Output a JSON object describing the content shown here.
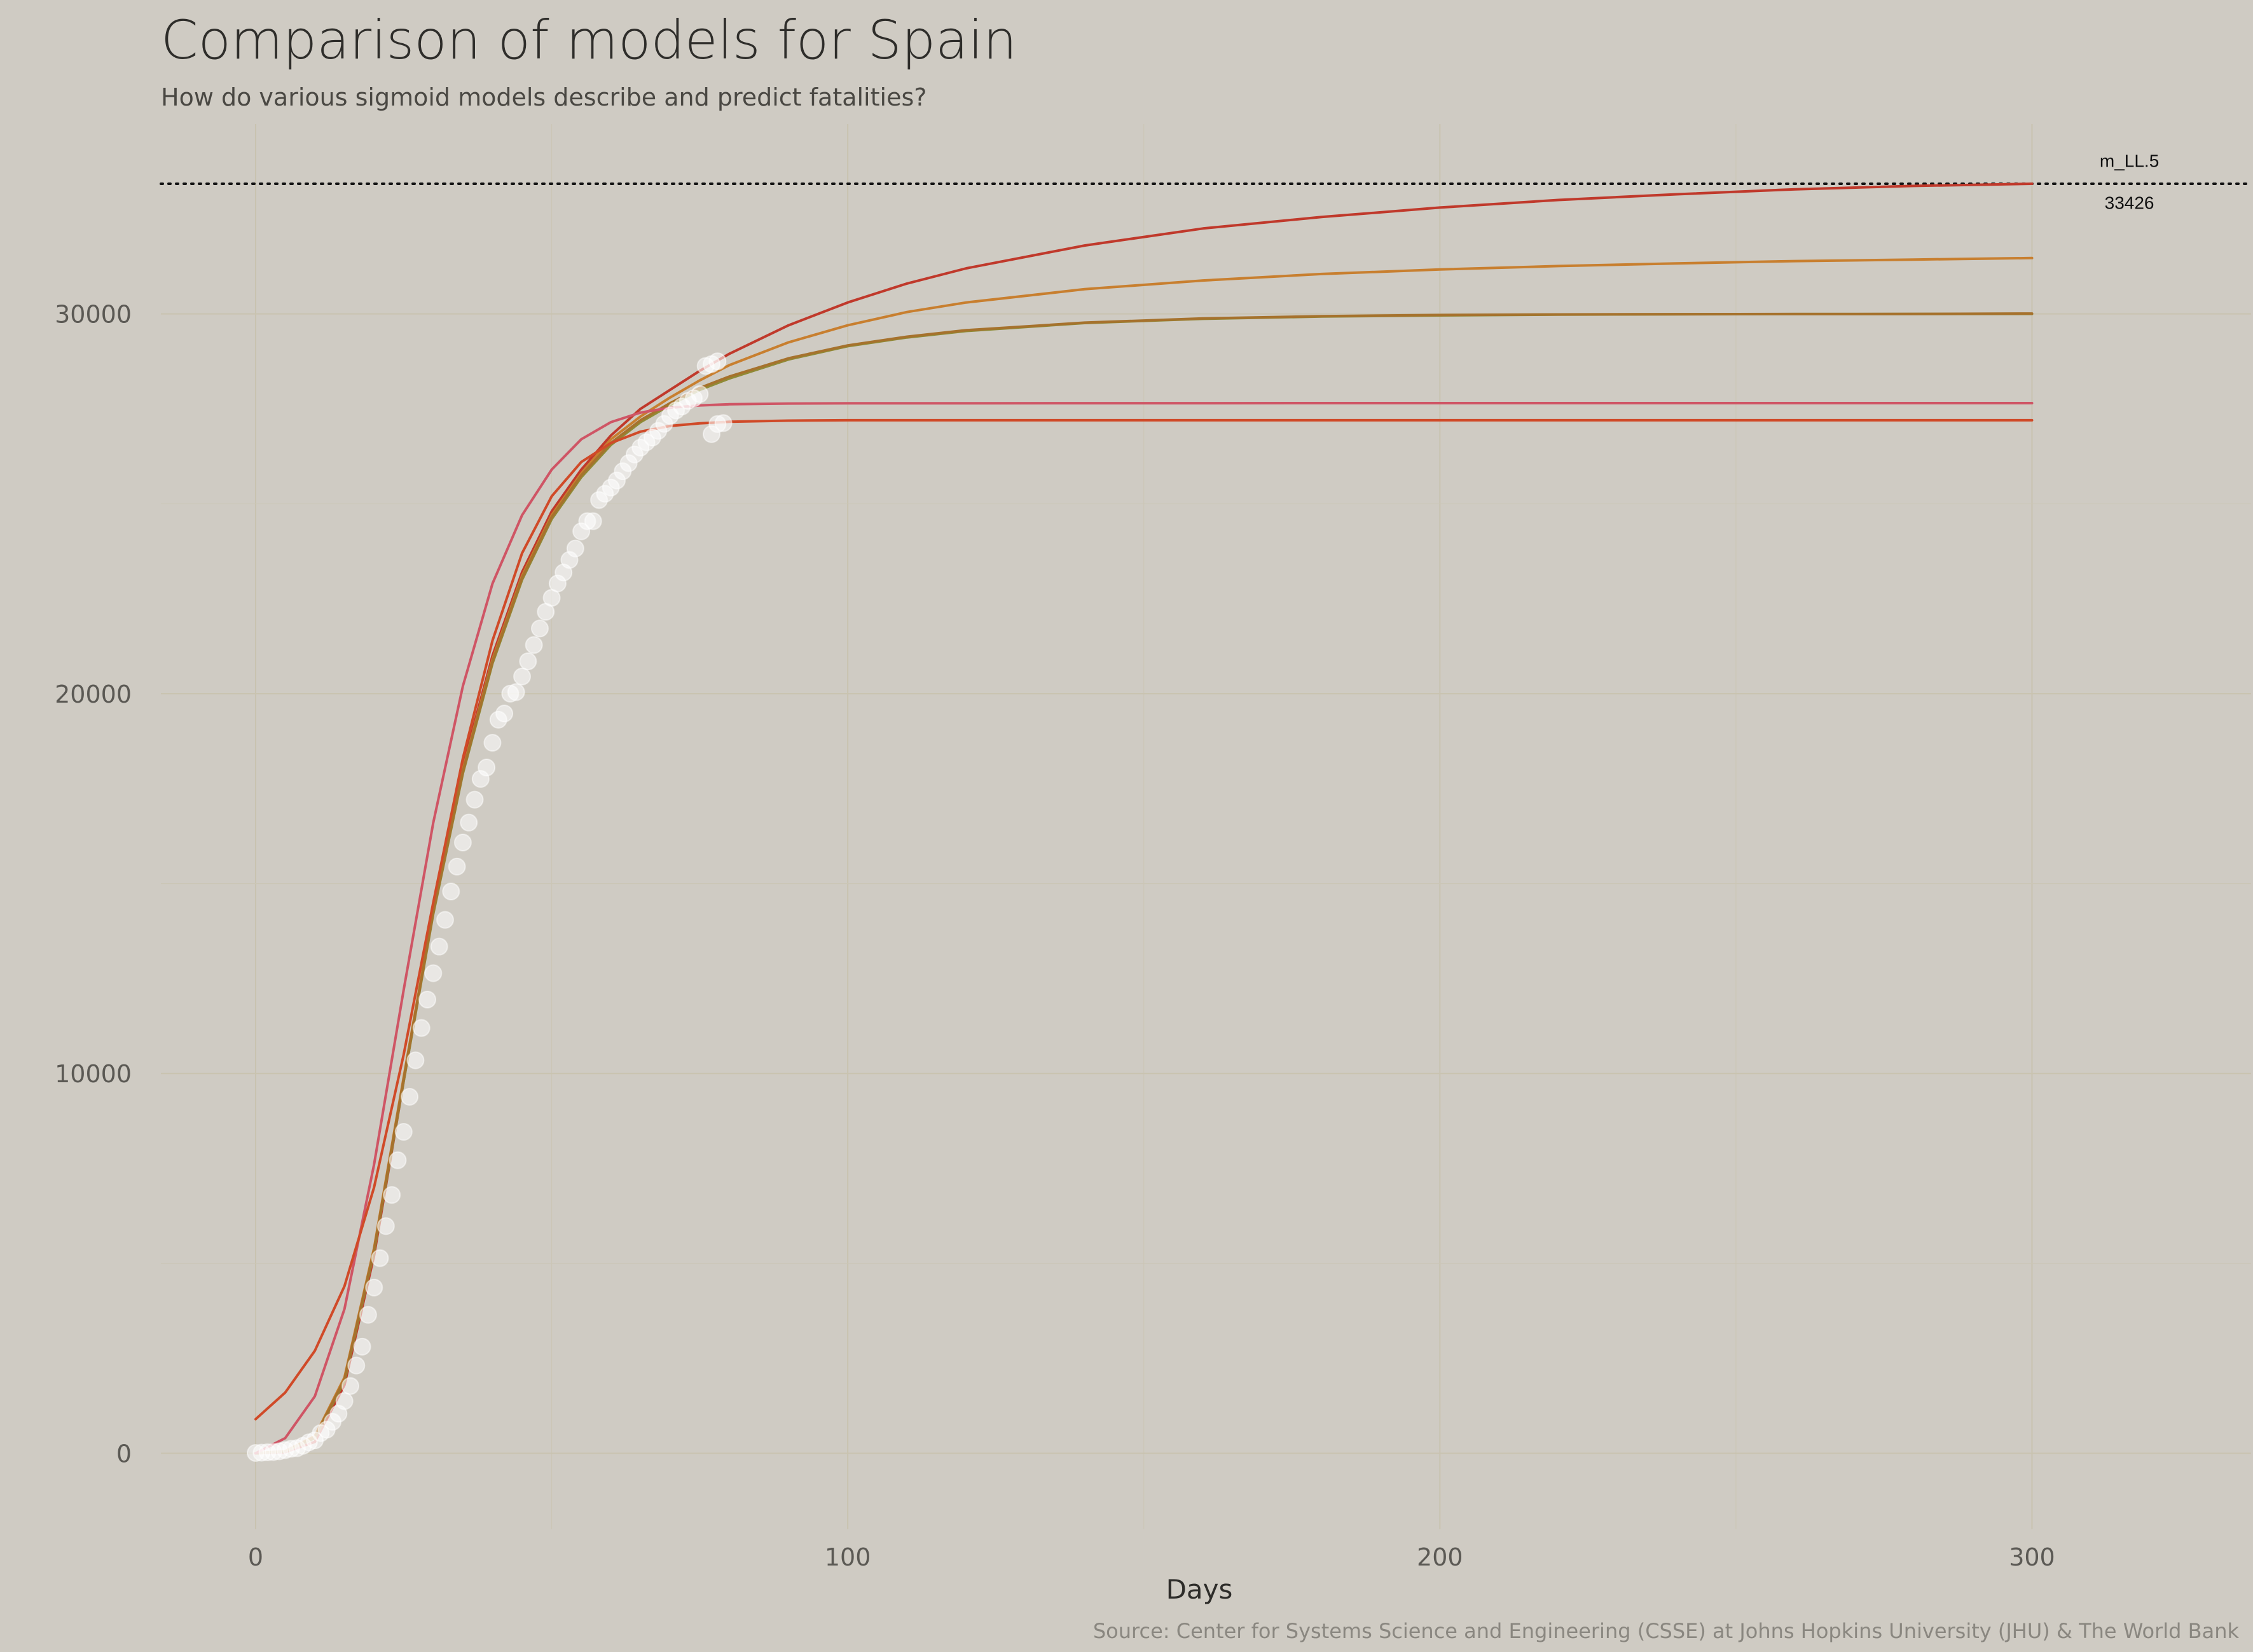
{
  "chart_data": {
    "type": "line",
    "title": "Comparison of models for Spain",
    "subtitle": "How do various sigmoid models describe and predict fatalities?",
    "xlabel": "Days",
    "ylabel": "",
    "caption": "Source: Center for Systems Science and Engineering (CSSE) at Johns Hopkins University (JHU) & The World Bank",
    "xlim": [
      -16,
      337
    ],
    "ylim": [
      -2000,
      35000
    ],
    "x_ticks": [
      0,
      100,
      200,
      300
    ],
    "x_tick_labels": [
      "0",
      "100",
      "200",
      "300"
    ],
    "y_ticks": [
      0,
      10000,
      20000,
      30000
    ],
    "y_tick_labels": [
      "0",
      "10000",
      "20000",
      "30000"
    ],
    "grid": true,
    "legend": "none",
    "reference_line": {
      "y": 33426,
      "style": "dotted",
      "color": "#111111"
    },
    "annotations": [
      {
        "text": "m_LL.5",
        "x": 310,
        "y": 34000
      },
      {
        "text": "33426",
        "x": 310,
        "y": 32900
      }
    ],
    "series": [
      {
        "kind": "line",
        "color": "#c0392b",
        "x": [
          0,
          5,
          10,
          15,
          20,
          25,
          30,
          35,
          40,
          45,
          50,
          55,
          60,
          65,
          70,
          75,
          80,
          90,
          100,
          110,
          120,
          140,
          160,
          180,
          200,
          220,
          240,
          260,
          280,
          300
        ],
        "y": [
          0,
          30,
          300,
          1800,
          5200,
          9800,
          14300,
          18100,
          21000,
          23200,
          24800,
          25900,
          26800,
          27500,
          28000,
          28500,
          28950,
          29700,
          30300,
          30800,
          31200,
          31800,
          32250,
          32550,
          32800,
          33000,
          33150,
          33280,
          33370,
          33426
        ]
      },
      {
        "kind": "line",
        "color": "#c87f2f",
        "x": [
          0,
          5,
          10,
          15,
          20,
          25,
          30,
          35,
          40,
          45,
          50,
          55,
          60,
          65,
          70,
          75,
          80,
          90,
          100,
          110,
          120,
          140,
          160,
          180,
          200,
          220,
          240,
          260,
          280,
          300
        ],
        "y": [
          0,
          60,
          450,
          2000,
          5400,
          9900,
          14300,
          18000,
          20900,
          23100,
          24700,
          25800,
          26700,
          27300,
          27800,
          28250,
          28650,
          29250,
          29700,
          30050,
          30300,
          30650,
          30880,
          31050,
          31170,
          31260,
          31330,
          31390,
          31430,
          31470
        ]
      },
      {
        "kind": "line",
        "color": "#8f8a36",
        "x": [
          0,
          5,
          10,
          15,
          20,
          25,
          30,
          35,
          40,
          45,
          50,
          55,
          60,
          65,
          70,
          75,
          80,
          90,
          100,
          110,
          120,
          140,
          160,
          180,
          200,
          220,
          240,
          260,
          280,
          300
        ],
        "y": [
          0,
          50,
          400,
          1900,
          5300,
          9800,
          14200,
          17900,
          20800,
          23000,
          24600,
          25700,
          26550,
          27150,
          27600,
          28000,
          28300,
          28800,
          29150,
          29380,
          29550,
          29760,
          29870,
          29930,
          29960,
          29980,
          29990,
          29995,
          29998,
          30000
        ]
      },
      {
        "kind": "line",
        "color": "#a6722d",
        "x": [
          0,
          5,
          10,
          15,
          20,
          25,
          30,
          35,
          40,
          45,
          50,
          55,
          60,
          65,
          70,
          75,
          80,
          90,
          100,
          110,
          120,
          140,
          160,
          180,
          200,
          220,
          240,
          260,
          280,
          300
        ],
        "y": [
          0,
          55,
          420,
          1950,
          5350,
          9850,
          14250,
          17950,
          20850,
          23050,
          24650,
          25750,
          26600,
          27200,
          27650,
          28050,
          28350,
          28830,
          29170,
          29400,
          29570,
          29770,
          29880,
          29940,
          29970,
          29985,
          29992,
          29996,
          29998,
          30010
        ]
      },
      {
        "kind": "line",
        "color": "#cf5565",
        "x": [
          0,
          5,
          10,
          15,
          20,
          25,
          30,
          35,
          40,
          45,
          50,
          55,
          60,
          65,
          70,
          75,
          80,
          90,
          100,
          150,
          200,
          250,
          300
        ],
        "y": [
          0,
          400,
          1500,
          3800,
          7600,
          12200,
          16600,
          20200,
          22900,
          24700,
          25900,
          26700,
          27150,
          27400,
          27530,
          27590,
          27620,
          27640,
          27645,
          27648,
          27650,
          27650,
          27650
        ]
      },
      {
        "kind": "line",
        "color": "#d04a28",
        "x": [
          0,
          5,
          10,
          15,
          20,
          25,
          30,
          35,
          40,
          45,
          50,
          55,
          60,
          65,
          70,
          75,
          80,
          90,
          100,
          150,
          200,
          250,
          300
        ],
        "y": [
          900,
          1600,
          2700,
          4400,
          7000,
          10500,
          14500,
          18300,
          21400,
          23700,
          25200,
          26100,
          26600,
          26900,
          27050,
          27120,
          27160,
          27190,
          27200,
          27200,
          27200,
          27200,
          27200
        ]
      },
      {
        "kind": "points",
        "color": "#ffffff",
        "x": [
          0,
          1,
          2,
          3,
          4,
          5,
          6,
          7,
          8,
          9,
          10,
          11,
          12,
          13,
          14,
          15,
          16,
          17,
          18,
          19,
          20,
          21,
          22,
          23,
          24,
          25,
          26,
          27,
          28,
          29,
          30,
          31,
          32,
          33,
          34,
          35,
          36,
          37,
          38,
          39,
          40,
          41,
          42,
          43,
          44,
          45,
          46,
          47,
          48,
          49,
          50,
          51,
          52,
          53,
          54,
          55,
          56,
          57,
          58,
          59,
          60,
          61,
          62,
          63,
          64,
          65,
          66,
          67,
          68,
          69,
          70,
          71,
          72,
          73,
          74,
          75,
          76,
          77,
          78
        ],
        "y": [
          10,
          17,
          28,
          35,
          54,
          84,
          120,
          136,
          198,
          289,
          342,
          533,
          623,
          830,
          1043,
          1375,
          1772,
          2311,
          2808,
          3647,
          4365,
          5138,
          5982,
          6803,
          7716,
          8464,
          9387,
          10348,
          11198,
          11947,
          12641,
          13341,
          14045,
          14792,
          15447,
          16081,
          16606,
          17209,
          17756,
          18056,
          18708,
          19315,
          19478,
          20002,
          20043,
          20453,
          20852,
          21282,
          21717,
          22157,
          22524,
          22902,
          23190,
          23521,
          23822,
          24275,
          24543,
          24543,
          25100,
          25264,
          25428,
          25613,
          25857,
          26070,
          26299,
          26478,
          26621,
          26744,
          26920,
          27104,
          27321,
          27459,
          27563,
          27709,
          27778,
          27888,
          28628,
          28678,
          28752
        ]
      },
      {
        "kind": "points",
        "color": "#ffffff",
        "x": [
          77,
          78,
          79
        ],
        "y": [
          26834,
          27100,
          27125
        ]
      }
    ]
  }
}
